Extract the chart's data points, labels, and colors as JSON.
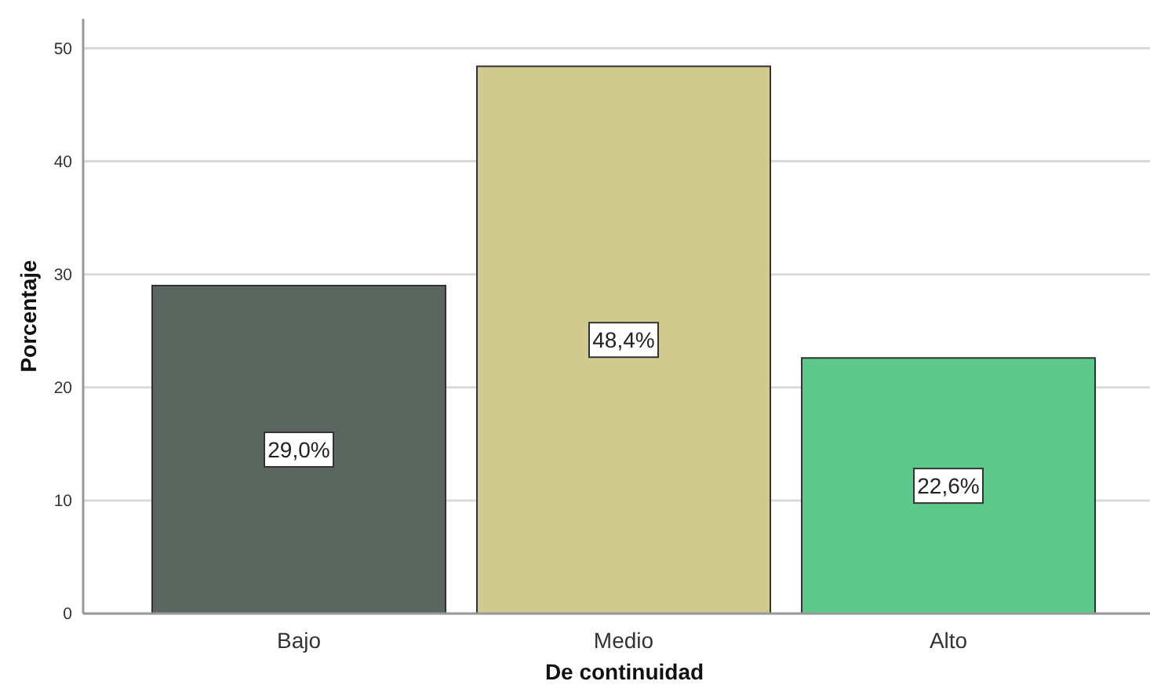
{
  "chart_data": {
    "type": "bar",
    "xlabel": "De continuidad",
    "ylabel": "Porcentaje",
    "categories": [
      "Bajo",
      "Medio",
      "Alto"
    ],
    "values": [
      29.0,
      48.4,
      22.6
    ],
    "colors": [
      "#5b6660",
      "#d1ca8e",
      "#5cc98a"
    ],
    "value_labels": [
      "29,0%",
      "48,4%",
      "22,6%"
    ],
    "ylim": [
      0,
      52.6
    ],
    "yticks": [
      0,
      10,
      20,
      30,
      40,
      50
    ],
    "grid": "y"
  }
}
